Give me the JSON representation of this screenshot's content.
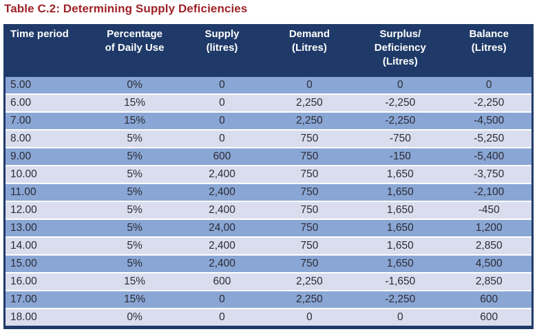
{
  "title": "Table C.2: Determining Supply Deficiencies",
  "colors": {
    "title_text": "#9e2227",
    "header_bg": "#1f3a68",
    "header_text": "#ffffff",
    "row_dark": "#8aa6d5",
    "row_light": "#d9ddee",
    "table_border": "#1f3a68",
    "body_text": "#2b2b33"
  },
  "table": {
    "columns": [
      "Time period",
      "Percentage\nof Daily Use",
      "Supply\n(litres)",
      "Demand\n(Litres)",
      "Surplus/\nDeficiency\n(Litres)",
      "Balance\n(Litres)"
    ],
    "rows": [
      [
        "5.00",
        "0%",
        "0",
        "0",
        "0",
        "0"
      ],
      [
        "6.00",
        "15%",
        "0",
        "2,250",
        "-2,250",
        "-2,250"
      ],
      [
        "7.00",
        "15%",
        "0",
        "2,250",
        "-2,250",
        "-4,500"
      ],
      [
        "8.00",
        "5%",
        "0",
        "750",
        "-750",
        "-5,250"
      ],
      [
        "9.00",
        "5%",
        "600",
        "750",
        "-150",
        "-5,400"
      ],
      [
        "10.00",
        "5%",
        "2,400",
        "750",
        "1,650",
        "-3,750"
      ],
      [
        "11.00",
        "5%",
        "2,400",
        "750",
        "1,650",
        "-2,100"
      ],
      [
        "12.00",
        "5%",
        "2,400",
        "750",
        "1,650",
        "-450"
      ],
      [
        "13.00",
        "5%",
        "24,00",
        "750",
        "1,650",
        "1,200"
      ],
      [
        "14.00",
        "5%",
        "2,400",
        "750",
        "1,650",
        "2,850"
      ],
      [
        "15.00",
        "5%",
        "2,400",
        "750",
        "1,650",
        "4,500"
      ],
      [
        "16.00",
        "15%",
        "600",
        "2,250",
        "-1,650",
        "2,850"
      ],
      [
        "17.00",
        "15%",
        "0",
        "2,250",
        "-2,250",
        "600"
      ],
      [
        "18.00",
        "0%",
        "0",
        "0",
        "0",
        "600"
      ]
    ]
  }
}
